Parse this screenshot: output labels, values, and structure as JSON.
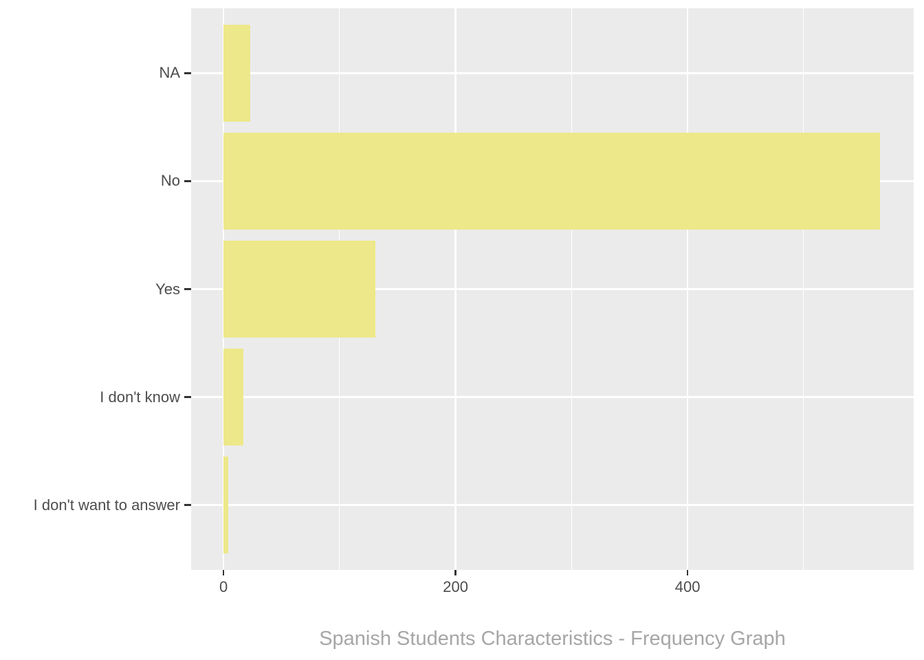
{
  "chart_data": {
    "type": "bar",
    "orientation": "horizontal",
    "title": "Spanish Students Characteristics - Frequency Graph",
    "categories": [
      "NA",
      "No",
      "Yes",
      "I don't know",
      "I don't want to answer"
    ],
    "values": [
      23,
      566,
      131,
      17,
      4
    ],
    "x_ticks": [
      0,
      200,
      400
    ],
    "x_tick_labels": [
      "0",
      "200",
      "400"
    ],
    "x_minor_ticks": [
      100,
      300,
      500
    ],
    "xlim": [
      -27.9,
      594.9
    ],
    "xlabel": "",
    "ylabel": "",
    "grid": "white major and minor vertical gridlines, white major horizontal gridlines on gray panel",
    "legend": "none",
    "colors": {
      "bar_fill": "#EDE88A",
      "panel_background": "#EBEBEB",
      "gridline": "#FFFFFF",
      "axis_text": "#4D4D4D",
      "tick_mark": "#333333",
      "title_text": "#A6A6A6"
    }
  }
}
